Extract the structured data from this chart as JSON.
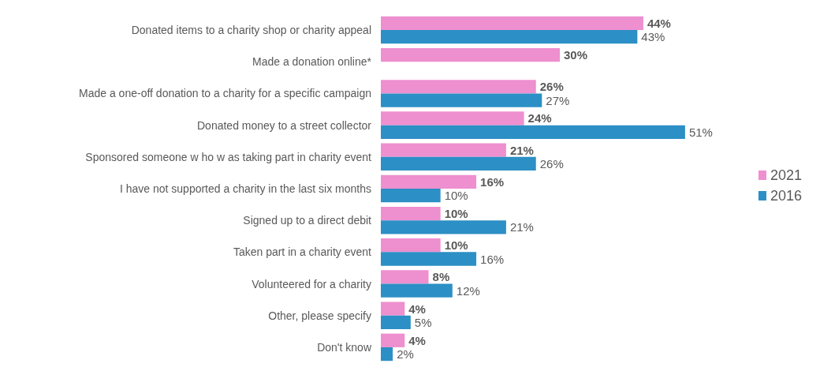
{
  "chart_data": {
    "type": "bar",
    "orientation": "horizontal",
    "legend": "right",
    "categories": [
      "Donated items to a charity shop or charity appeal",
      "Made a donation online*",
      "Made a one-off donation to a charity for a specific campaign",
      "Donated money to a street collector",
      "Sponsored someone w ho w as taking part in charity event",
      "I have not supported a charity in the last six months",
      "Signed up to a direct debit",
      "Taken part in a charity event",
      "Volunteered for a charity",
      "Other, please specify",
      "Don't know"
    ],
    "series": [
      {
        "name": "2021",
        "color": "#ee8fcf",
        "values": [
          44,
          30,
          26,
          24,
          21,
          16,
          10,
          10,
          8,
          4,
          4
        ],
        "value_labels": [
          "44%",
          "30%",
          "26%",
          "24%",
          "21%",
          "16%",
          "10%",
          "10%",
          "8%",
          "4%",
          "4%"
        ]
      },
      {
        "name": "2016",
        "color": "#2c8fc5",
        "values": [
          43,
          null,
          27,
          51,
          26,
          10,
          21,
          16,
          12,
          5,
          2
        ],
        "value_labels": [
          "43%",
          null,
          "27%",
          "51%",
          "26%",
          "10%",
          "21%",
          "16%",
          "12%",
          "5%",
          "2%"
        ]
      }
    ]
  }
}
